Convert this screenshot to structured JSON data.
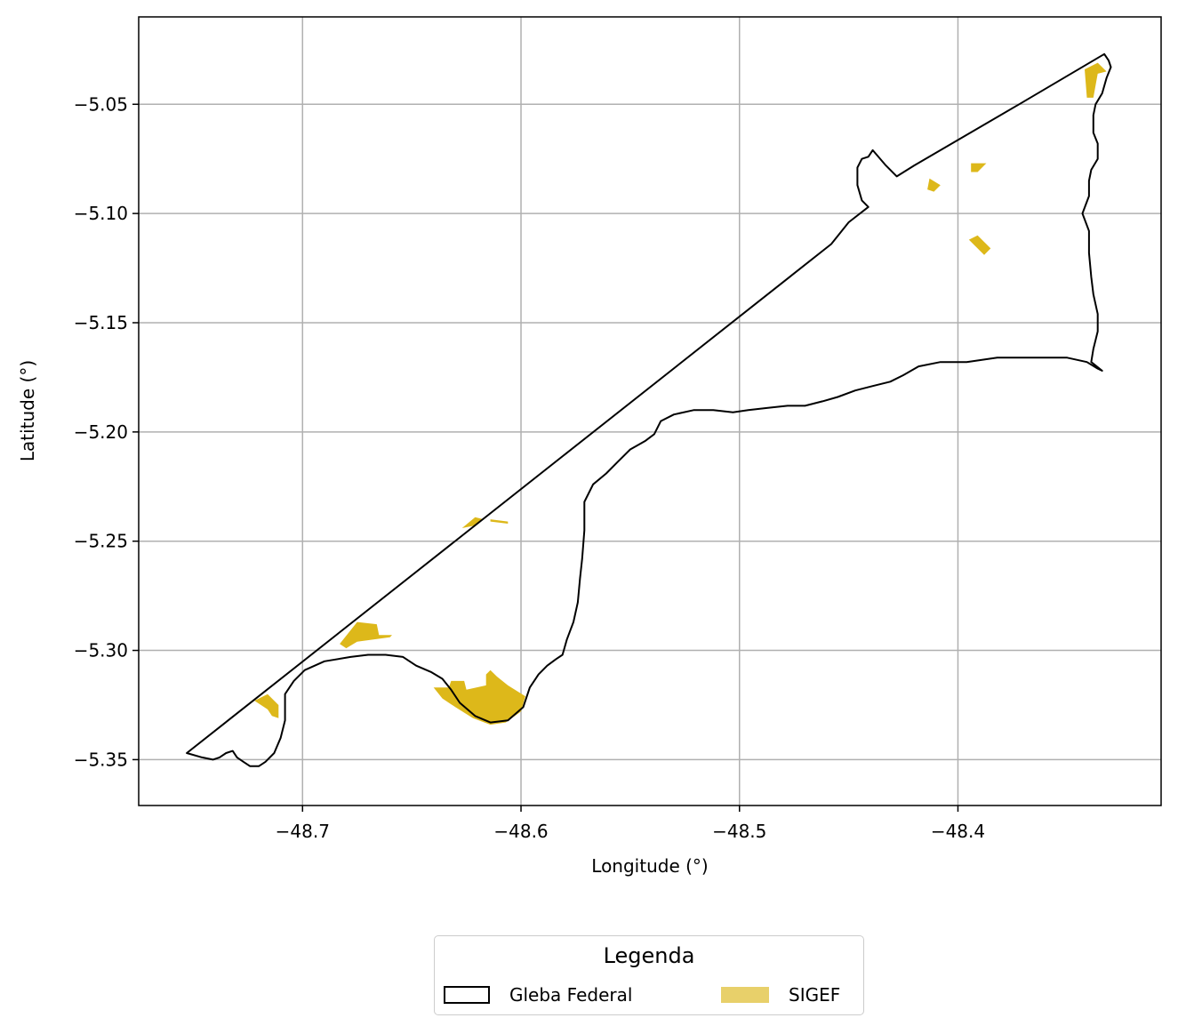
{
  "chart_data": {
    "type": "map",
    "xlabel": "Longitude (°)",
    "ylabel": "Latitude (°)",
    "xlim": [
      -48.775,
      -48.307
    ],
    "ylim": [
      -5.371,
      -5.01
    ],
    "xticks": [
      -48.7,
      -48.6,
      -48.5,
      -48.4
    ],
    "yticks": [
      -5.05,
      -5.1,
      -5.15,
      -5.2,
      -5.25,
      -5.3,
      -5.35
    ],
    "xtick_labels": [
      "−48.7",
      "−48.6",
      "−48.5",
      "−48.4"
    ],
    "ytick_labels": [
      "−5.05",
      "−5.10",
      "−5.15",
      "−5.20",
      "−5.25",
      "−5.30",
      "−5.35"
    ],
    "grid": true,
    "colors": {
      "gleba_outline": "#000000",
      "sigef_fill": "#ddb81a",
      "grid": "#b0b0b0"
    },
    "layers": [
      {
        "name": "Gleba Federal",
        "style": "outline",
        "polygon": [
          [
            -48.753,
            -5.347
          ],
          [
            -48.746,
            -5.349
          ],
          [
            -48.741,
            -5.35
          ],
          [
            -48.738,
            -5.349
          ],
          [
            -48.735,
            -5.347
          ],
          [
            -48.732,
            -5.346
          ],
          [
            -48.73,
            -5.349
          ],
          [
            -48.727,
            -5.351
          ],
          [
            -48.724,
            -5.353
          ],
          [
            -48.72,
            -5.353
          ],
          [
            -48.717,
            -5.351
          ],
          [
            -48.713,
            -5.347
          ],
          [
            -48.71,
            -5.34
          ],
          [
            -48.708,
            -5.332
          ],
          [
            -48.708,
            -5.32
          ],
          [
            -48.704,
            -5.314
          ],
          [
            -48.699,
            -5.309
          ],
          [
            -48.69,
            -5.305
          ],
          [
            -48.678,
            -5.303
          ],
          [
            -48.67,
            -5.302
          ],
          [
            -48.662,
            -5.302
          ],
          [
            -48.654,
            -5.303
          ],
          [
            -48.648,
            -5.307
          ],
          [
            -48.641,
            -5.31
          ],
          [
            -48.636,
            -5.313
          ],
          [
            -48.632,
            -5.318
          ],
          [
            -48.628,
            -5.324
          ],
          [
            -48.621,
            -5.33
          ],
          [
            -48.614,
            -5.333
          ],
          [
            -48.606,
            -5.332
          ],
          [
            -48.599,
            -5.326
          ],
          [
            -48.596,
            -5.317
          ],
          [
            -48.592,
            -5.311
          ],
          [
            -48.588,
            -5.307
          ],
          [
            -48.584,
            -5.304
          ],
          [
            -48.581,
            -5.302
          ],
          [
            -48.579,
            -5.295
          ],
          [
            -48.576,
            -5.287
          ],
          [
            -48.574,
            -5.278
          ],
          [
            -48.573,
            -5.267
          ],
          [
            -48.572,
            -5.258
          ],
          [
            -48.571,
            -5.245
          ],
          [
            -48.571,
            -5.232
          ],
          [
            -48.567,
            -5.224
          ],
          [
            -48.561,
            -5.219
          ],
          [
            -48.556,
            -5.214
          ],
          [
            -48.55,
            -5.208
          ],
          [
            -48.543,
            -5.204
          ],
          [
            -48.539,
            -5.201
          ],
          [
            -48.536,
            -5.195
          ],
          [
            -48.53,
            -5.192
          ],
          [
            -48.521,
            -5.19
          ],
          [
            -48.512,
            -5.19
          ],
          [
            -48.503,
            -5.191
          ],
          [
            -48.496,
            -5.19
          ],
          [
            -48.487,
            -5.189
          ],
          [
            -48.478,
            -5.188
          ],
          [
            -48.47,
            -5.188
          ],
          [
            -48.462,
            -5.186
          ],
          [
            -48.455,
            -5.184
          ],
          [
            -48.447,
            -5.181
          ],
          [
            -48.439,
            -5.179
          ],
          [
            -48.431,
            -5.177
          ],
          [
            -48.425,
            -5.174
          ],
          [
            -48.418,
            -5.17
          ],
          [
            -48.408,
            -5.168
          ],
          [
            -48.396,
            -5.168
          ],
          [
            -48.382,
            -5.166
          ],
          [
            -48.371,
            -5.166
          ],
          [
            -48.36,
            -5.166
          ],
          [
            -48.35,
            -5.166
          ],
          [
            -48.341,
            -5.168
          ],
          [
            -48.336,
            -5.171
          ],
          [
            -48.334,
            -5.172
          ],
          [
            -48.339,
            -5.168
          ],
          [
            -48.338,
            -5.162
          ],
          [
            -48.336,
            -5.154
          ],
          [
            -48.336,
            -5.146
          ],
          [
            -48.338,
            -5.137
          ],
          [
            -48.339,
            -5.129
          ],
          [
            -48.34,
            -5.118
          ],
          [
            -48.34,
            -5.108
          ],
          [
            -48.343,
            -5.1
          ],
          [
            -48.34,
            -5.092
          ],
          [
            -48.34,
            -5.085
          ],
          [
            -48.339,
            -5.08
          ],
          [
            -48.336,
            -5.075
          ],
          [
            -48.336,
            -5.068
          ],
          [
            -48.338,
            -5.063
          ],
          [
            -48.338,
            -5.055
          ],
          [
            -48.337,
            -5.05
          ],
          [
            -48.334,
            -5.045
          ],
          [
            -48.332,
            -5.038
          ],
          [
            -48.33,
            -5.033
          ],
          [
            -48.331,
            -5.03
          ],
          [
            -48.333,
            -5.027
          ],
          [
            -48.372,
            -5.05
          ],
          [
            -48.42,
            -5.078
          ],
          [
            -48.428,
            -5.083
          ],
          [
            -48.433,
            -5.078
          ],
          [
            -48.439,
            -5.071
          ],
          [
            -48.441,
            -5.074
          ],
          [
            -48.444,
            -5.075
          ],
          [
            -48.446,
            -5.079
          ],
          [
            -48.446,
            -5.087
          ],
          [
            -48.444,
            -5.094
          ],
          [
            -48.441,
            -5.097
          ],
          [
            -48.45,
            -5.104
          ],
          [
            -48.458,
            -5.114
          ],
          [
            -48.753,
            -5.347
          ]
        ]
      },
      {
        "name": "SIGEF",
        "style": "fill",
        "polygons": [
          [
            [
              -48.722,
              -5.323
            ],
            [
              -48.716,
              -5.32
            ],
            [
              -48.711,
              -5.325
            ],
            [
              -48.711,
              -5.331
            ],
            [
              -48.714,
              -5.33
            ],
            [
              -48.716,
              -5.327
            ]
          ],
          [
            [
              -48.683,
              -5.297
            ],
            [
              -48.675,
              -5.287
            ],
            [
              -48.666,
              -5.288
            ],
            [
              -48.665,
              -5.293
            ],
            [
              -48.659,
              -5.293
            ],
            [
              -48.66,
              -5.294
            ],
            [
              -48.675,
              -5.296
            ],
            [
              -48.68,
              -5.299
            ]
          ],
          [
            [
              -48.64,
              -5.317
            ],
            [
              -48.633,
              -5.317
            ],
            [
              -48.632,
              -5.314
            ],
            [
              -48.626,
              -5.314
            ],
            [
              -48.625,
              -5.318
            ],
            [
              -48.616,
              -5.316
            ],
            [
              -48.616,
              -5.311
            ],
            [
              -48.614,
              -5.309
            ],
            [
              -48.611,
              -5.312
            ],
            [
              -48.606,
              -5.316
            ],
            [
              -48.598,
              -5.321
            ],
            [
              -48.6,
              -5.328
            ],
            [
              -48.607,
              -5.333
            ],
            [
              -48.614,
              -5.334
            ],
            [
              -48.622,
              -5.331
            ],
            [
              -48.63,
              -5.326
            ],
            [
              -48.636,
              -5.322
            ]
          ],
          [
            [
              -48.627,
              -5.244
            ],
            [
              -48.621,
              -5.239
            ],
            [
              -48.617,
              -5.24
            ],
            [
              -48.622,
              -5.243
            ]
          ],
          [
            [
              -48.614,
              -5.24
            ],
            [
              -48.606,
              -5.241
            ],
            [
              -48.606,
              -5.242
            ],
            [
              -48.614,
              -5.241
            ]
          ],
          [
            [
              -48.413,
              -5.084
            ],
            [
              -48.408,
              -5.087
            ],
            [
              -48.411,
              -5.09
            ],
            [
              -48.414,
              -5.089
            ]
          ],
          [
            [
              -48.394,
              -5.077
            ],
            [
              -48.387,
              -5.077
            ],
            [
              -48.391,
              -5.081
            ],
            [
              -48.394,
              -5.081
            ]
          ],
          [
            [
              -48.391,
              -5.11
            ],
            [
              -48.385,
              -5.116
            ],
            [
              -48.388,
              -5.119
            ],
            [
              -48.395,
              -5.112
            ]
          ],
          [
            [
              -48.342,
              -5.034
            ],
            [
              -48.336,
              -5.031
            ],
            [
              -48.332,
              -5.035
            ],
            [
              -48.336,
              -5.036
            ],
            [
              -48.338,
              -5.047
            ],
            [
              -48.341,
              -5.047
            ]
          ]
        ]
      }
    ]
  },
  "legend": {
    "title": "Legenda",
    "items": [
      {
        "label": "Gleba Federal",
        "style": "outline"
      },
      {
        "label": "SIGEF",
        "style": "fill",
        "color": "#e8d06a"
      }
    ]
  }
}
